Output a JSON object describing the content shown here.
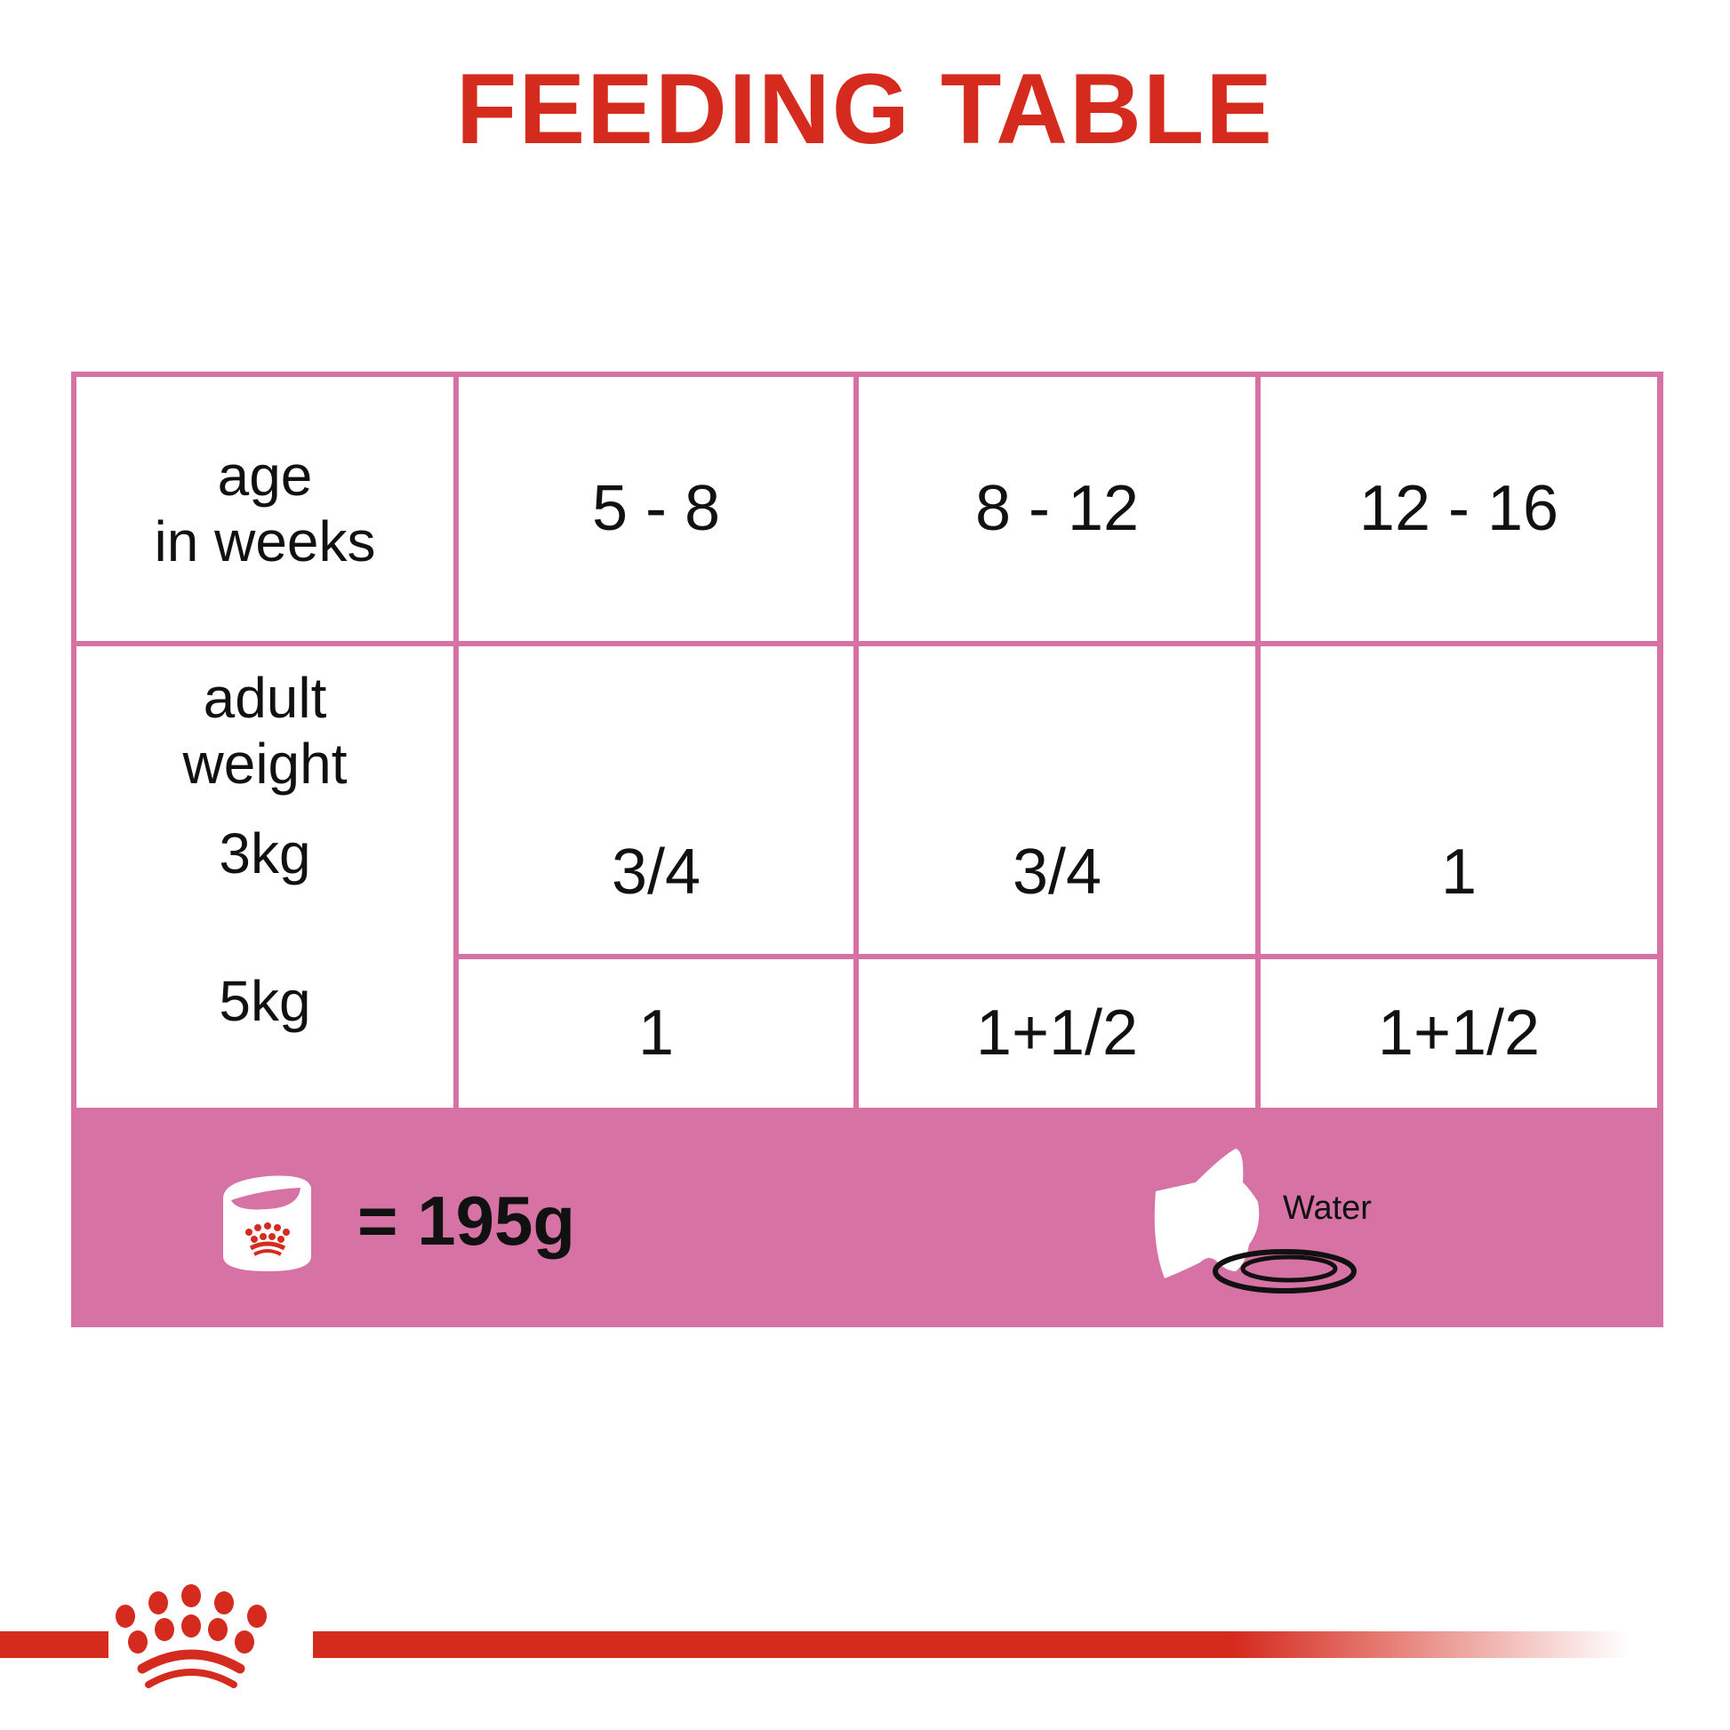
{
  "title": "FEEDING TABLE",
  "table": {
    "age_label": [
      "age",
      "in weeks"
    ],
    "age_columns": [
      "5 - 8",
      "8 - 12",
      "12 - 16"
    ],
    "weight_label": [
      "adult",
      "weight"
    ],
    "rows": [
      {
        "weight": "3kg",
        "values": [
          "3/4",
          "3/4",
          "1"
        ]
      },
      {
        "weight": "5kg",
        "values": [
          "1",
          "1+1/2",
          "1+1/2"
        ]
      }
    ]
  },
  "legend": {
    "can_icon": "food-can-icon",
    "can_equals": "= 195g",
    "water_icon": "cat-drinking-icon",
    "water_label": "Water"
  },
  "brand": {
    "logo": "Royal Canin crown logo",
    "color": "#d52b1e"
  },
  "colors": {
    "table_border": "#d672a4",
    "title": "#d52b1e"
  }
}
